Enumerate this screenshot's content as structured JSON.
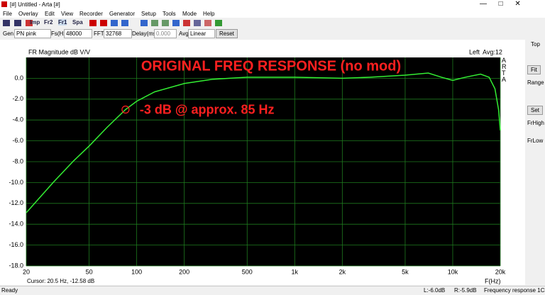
{
  "window": {
    "title": "[#] Untitled - Arta [#]",
    "menu": [
      "File",
      "Overlay",
      "Edit",
      "View",
      "Recorder",
      "Generator",
      "Setup",
      "Tools",
      "Mode",
      "Help"
    ],
    "toolbar": [
      "Imp",
      "Fr2",
      "Fr1",
      "Spa"
    ],
    "controls": {
      "gen_label": "Gen",
      "gen": "PN pink",
      "fs_label": "Fs(Hz)",
      "fs": "48000",
      "fft_label": "FFT",
      "fft": "32768",
      "delay_label": "Delay(ms)",
      "delay": "0.000",
      "avg_label": "Avg",
      "avg": "Linear",
      "reset": "Reset"
    },
    "side": {
      "top": "Top",
      "fit": "Fit",
      "range": "Range",
      "set": "Set",
      "frhigh": "FrHigh",
      "frlow": "FrLow"
    },
    "cursor": "Cursor:   20.5 Hz, -12.58 dB",
    "status": [
      "Ready",
      "L:-6.0dB",
      "R:-5.9dB",
      "Frequency response 1Ch"
    ]
  },
  "chart_data": {
    "type": "line",
    "title": "FR Magnitude dB V/V",
    "headline": "ORIGINAL FREQ RESPONSE (no mod)",
    "channel": "Left",
    "avg": "Avg:12",
    "brand": "ARTA",
    "x_label": "F(Hz)",
    "xscale": "log",
    "xlim": [
      20,
      20000
    ],
    "ylim": [
      -18,
      2
    ],
    "grid": true,
    "grid_color": "#1e7a1e",
    "color": "#33ee33",
    "xticks": [
      20,
      50,
      100,
      200,
      500,
      {
        "value": 1000,
        "label": "1k"
      },
      {
        "value": 2000,
        "label": "2k"
      },
      {
        "value": 5000,
        "label": "5k"
      },
      {
        "value": 10000,
        "label": "10k"
      },
      {
        "value": 20000,
        "label": "20k"
      }
    ],
    "yticks": [
      {
        "value": 0,
        "label": "0.0"
      },
      {
        "value": -2,
        "label": "-2.0"
      },
      {
        "value": -4,
        "label": "-4.0"
      },
      {
        "value": -6,
        "label": "-6.0"
      },
      {
        "value": -8,
        "label": "-8.0"
      },
      {
        "value": -10,
        "label": "-10.0"
      },
      {
        "value": -12,
        "label": "-12.0"
      },
      {
        "value": -14,
        "label": "-14.0"
      },
      {
        "value": -16,
        "label": "-16.0"
      },
      {
        "value": -18,
        "label": "-18.0"
      }
    ],
    "x": [
      20,
      30,
      40,
      50,
      65,
      85,
      100,
      130,
      200,
      300,
      500,
      1000,
      2000,
      3000,
      5000,
      7000,
      8500,
      10000,
      12000,
      15000,
      17000,
      18500,
      19500,
      20000
    ],
    "values": [
      -12.9,
      -9.9,
      -7.9,
      -6.5,
      -4.7,
      -3.0,
      -2.2,
      -1.3,
      -0.5,
      -0.1,
      0.1,
      0.1,
      0.0,
      0.1,
      0.3,
      0.5,
      0.1,
      -0.2,
      0.1,
      0.4,
      0.1,
      -1.0,
      -3.0,
      -5.0
    ],
    "annotations": [
      {
        "text": "-3 dB @ approx. 85 Hz",
        "x": 85,
        "y": -3
      }
    ],
    "annotation_color": "#ff2020"
  }
}
